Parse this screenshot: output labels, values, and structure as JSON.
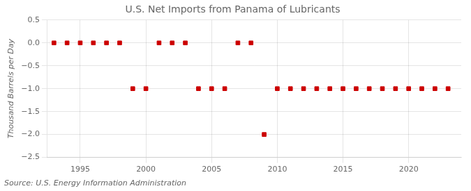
{
  "chart_data": {
    "type": "scatter",
    "title": "U.S. Net Imports from Panama of Lubricants",
    "ylabel": "Thousand Barrels per Day",
    "annotations": [
      "Source: U.S. Energy Information Administration"
    ],
    "x": [
      1993,
      1994,
      1995,
      1996,
      1997,
      1998,
      1999,
      2000,
      2001,
      2002,
      2003,
      2004,
      2005,
      2006,
      2007,
      2008,
      2009,
      2010,
      2011,
      2012,
      2013,
      2014,
      2015,
      2016,
      2017,
      2018,
      2019,
      2020,
      2021,
      2022,
      2023
    ],
    "values": [
      0,
      0,
      0,
      0,
      0,
      0,
      -1,
      -1,
      0,
      0,
      0,
      -1,
      -1,
      -1,
      0,
      0,
      -2,
      -1,
      -1,
      -1,
      -1,
      -1,
      -1,
      -1,
      -1,
      -1,
      -1,
      -1,
      -1,
      -1,
      -1
    ],
    "color": "#cc0000",
    "marker": "square",
    "xlim": [
      1992.5,
      2024
    ],
    "xticks": [
      1995,
      2000,
      2005,
      2010,
      2015,
      2020
    ],
    "ylim": [
      -2.5,
      0.5
    ],
    "yticks": [
      0.5,
      {
        "value": 0,
        "label": "0.0"
      },
      {
        "value": -0.5,
        "label": "−0.5"
      },
      {
        "value": -1,
        "label": "−1.0"
      },
      {
        "value": -1.5,
        "label": "−1.5"
      },
      {
        "value": -2,
        "label": "−2.0"
      },
      {
        "value": -2.5,
        "label": "−2.5"
      }
    ],
    "grid": true
  }
}
